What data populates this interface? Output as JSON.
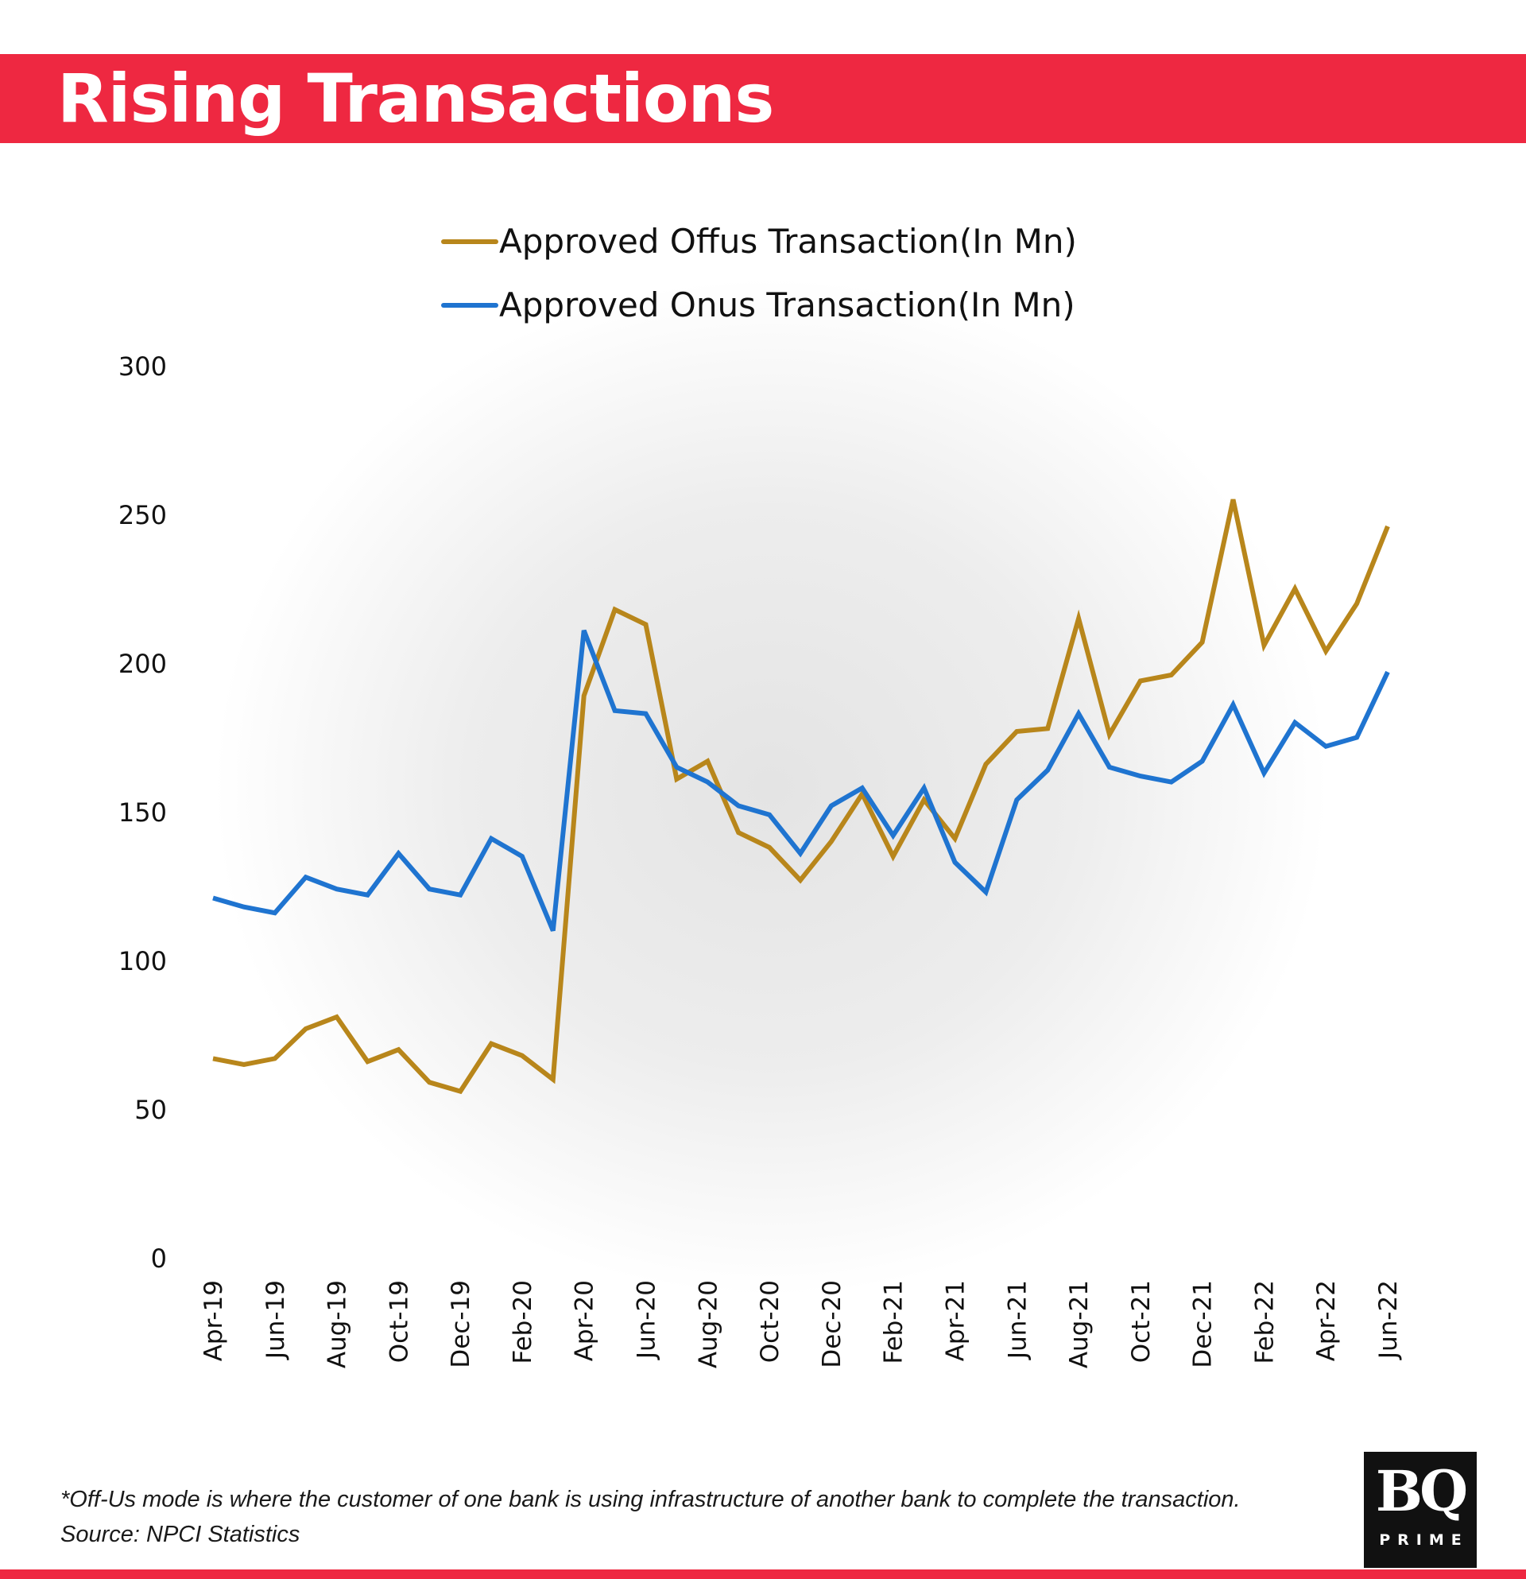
{
  "header": {
    "title": "Rising Transactions"
  },
  "colors": {
    "brand_red": "#ee2841",
    "offus": "#b8861b",
    "onus": "#1f74d0"
  },
  "chart_data": {
    "type": "line",
    "title": "Rising Transactions",
    "xlabel": "",
    "ylabel": "",
    "ylim": [
      0,
      300
    ],
    "yticks": [
      0,
      50,
      100,
      150,
      200,
      250,
      300
    ],
    "grid": false,
    "legend_position": "top-center",
    "x": [
      "Apr-19",
      "May-19",
      "Jun-19",
      "Jul-19",
      "Aug-19",
      "Sep-19",
      "Oct-19",
      "Nov-19",
      "Dec-19",
      "Jan-20",
      "Feb-20",
      "Mar-20",
      "Apr-20",
      "May-20",
      "Jun-20",
      "Jul-20",
      "Aug-20",
      "Sep-20",
      "Oct-20",
      "Nov-20",
      "Dec-20",
      "Jan-21",
      "Feb-21",
      "Mar-21",
      "Apr-21",
      "May-21",
      "Jun-21",
      "Jul-21",
      "Aug-21",
      "Sep-21",
      "Oct-21",
      "Nov-21",
      "Dec-21",
      "Jan-22",
      "Feb-22",
      "Mar-22",
      "Apr-22",
      "May-22",
      "Jun-22"
    ],
    "x_tick_labels": [
      "Apr-19",
      "Jun-19",
      "Aug-19",
      "Oct-19",
      "Dec-19",
      "Feb-20",
      "Apr-20",
      "Jun-20",
      "Aug-20",
      "Oct-20",
      "Dec-20",
      "Feb-21",
      "Apr-21",
      "Jun-21",
      "Aug-21",
      "Oct-21",
      "Dec-21",
      "Feb-22",
      "Apr-22",
      "Jun-22"
    ],
    "series": [
      {
        "name": "Approved Offus Transaction(In Mn)",
        "color": "#b8861b",
        "values": [
          67,
          65,
          67,
          77,
          81,
          66,
          70,
          59,
          56,
          72,
          68,
          60,
          189,
          218,
          213,
          161,
          167,
          143,
          138,
          127,
          140,
          156,
          135,
          154,
          141,
          166,
          177,
          178,
          215,
          176,
          194,
          196,
          207,
          255,
          206,
          225,
          204,
          220,
          246
        ]
      },
      {
        "name": "Approved Onus Transaction(In Mn)",
        "color": "#1f74d0",
        "values": [
          121,
          118,
          116,
          128,
          124,
          122,
          136,
          124,
          122,
          141,
          135,
          110,
          211,
          184,
          183,
          165,
          160,
          152,
          149,
          136,
          152,
          158,
          142,
          158,
          133,
          123,
          154,
          164,
          183,
          165,
          162,
          160,
          167,
          186,
          163,
          180,
          172,
          175,
          197
        ]
      }
    ]
  },
  "footer": {
    "note": "*Off-Us mode is where the customer of one bank is using infrastructure of another bank to complete the transaction.",
    "source": "Source: NPCI Statistics"
  },
  "logo": {
    "main": "BQ",
    "sub": "PRIME"
  }
}
